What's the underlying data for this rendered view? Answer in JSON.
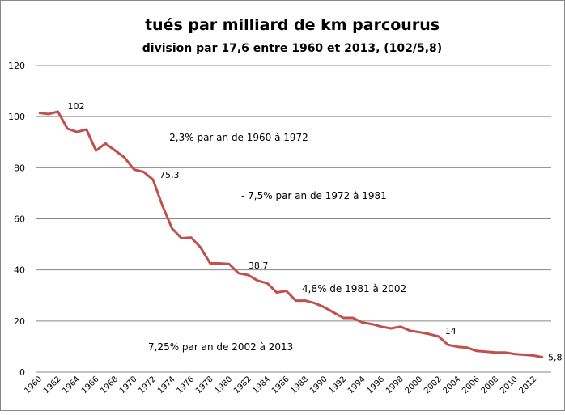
{
  "chart_data": {
    "type": "line",
    "title": "tués par milliard de km parcourus",
    "subtitle": "division par 17,6 entre 1960 et 2013, (102/5,8)",
    "xlabel": "",
    "ylabel": "",
    "ylim": [
      0,
      120
    ],
    "yticks": [
      0,
      20,
      40,
      60,
      80,
      100,
      120
    ],
    "xticks": [
      1960,
      1962,
      1964,
      1966,
      1968,
      1970,
      1972,
      1974,
      1976,
      1978,
      1980,
      1982,
      1984,
      1986,
      1988,
      1990,
      1992,
      1994,
      1996,
      1998,
      2000,
      2002,
      2004,
      2006,
      2008,
      2010,
      2012
    ],
    "grid": true,
    "color": "#c0504d",
    "x": [
      1960,
      1961,
      1962,
      1963,
      1964,
      1965,
      1966,
      1967,
      1968,
      1969,
      1970,
      1971,
      1972,
      1973,
      1974,
      1975,
      1976,
      1977,
      1978,
      1979,
      1980,
      1981,
      1982,
      1983,
      1984,
      1985,
      1986,
      1987,
      1988,
      1989,
      1990,
      1991,
      1992,
      1993,
      1994,
      1995,
      1996,
      1997,
      1998,
      1999,
      2000,
      2001,
      2002,
      2003,
      2004,
      2005,
      2006,
      2007,
      2008,
      2009,
      2010,
      2011,
      2012,
      2013
    ],
    "values": [
      101.5,
      101,
      102,
      95.3,
      94,
      95,
      86.7,
      89.5,
      86.8,
      84,
      79.3,
      78.4,
      75.3,
      65,
      56.2,
      52.4,
      52.7,
      48.8,
      42.6,
      42.6,
      42.3,
      38.7,
      38,
      35.8,
      34.8,
      31.2,
      31.8,
      28,
      28,
      27,
      25.4,
      23.3,
      21.2,
      21.2,
      19.4,
      18.8,
      17.8,
      17.1,
      17.8,
      16.2,
      15.6,
      14.9,
      14,
      10.7,
      9.9,
      9.6,
      8.3,
      8,
      7.7,
      7.7,
      7.1,
      6.8,
      6.5,
      5.8
    ],
    "data_labels": [
      {
        "year": 1962,
        "text": "102"
      },
      {
        "year": 1972,
        "text": "75,3"
      },
      {
        "year": 1981,
        "text": "38.7"
      },
      {
        "year": 2002,
        "text": "14"
      },
      {
        "year": 2013,
        "text": "5,8"
      }
    ],
    "annotations": [
      "- 2,3% par an de 1960 à 1972",
      "- 7,5% par an de 1972 à 1981",
      "4,8% de 1981 à 2002",
      "7,25% par an de 2002 à 2013"
    ]
  }
}
